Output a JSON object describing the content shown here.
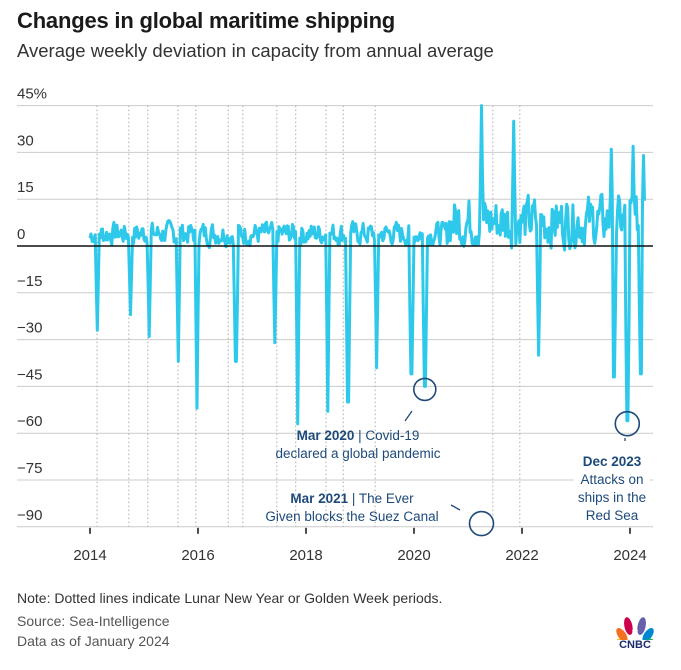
{
  "header": {
    "title": "Changes in global maritime shipping",
    "subtitle": "Average weekly deviation in capacity from annual average"
  },
  "colors": {
    "line": "#2ec9ea",
    "annotation": "#1e4a7a",
    "zero_line": "#111111",
    "grid": "#cccccc",
    "dotted": "#aaaaaa"
  },
  "chart_data": {
    "type": "line",
    "title": "Changes in global maritime shipping",
    "subtitle": "Average weekly deviation in capacity from annual average",
    "xlabel": "",
    "ylabel": "",
    "ylim": [
      -95,
      47
    ],
    "xlim": [
      2013.6,
      2024.5
    ],
    "y_ticks": [
      45,
      30,
      15,
      0,
      -15,
      -30,
      -45,
      -60,
      -75,
      -90
    ],
    "y_tick_labels": [
      "45%",
      "30",
      "15",
      "0",
      "−15",
      "−30",
      "−45",
      "−60",
      "−75",
      "−90"
    ],
    "x_ticks": [
      2014,
      2016,
      2018,
      2020,
      2022,
      2024
    ],
    "x_tick_labels": [
      "2014",
      "2016",
      "2018",
      "2020",
      "2022",
      "2024"
    ],
    "grid": "horizontal",
    "zero_line": true,
    "dotted_lines_years": [
      2014.13,
      2014.72,
      2015.07,
      2015.63,
      2015.96,
      2016.56,
      2016.83,
      2017.46,
      2017.81,
      2018.37,
      2018.69,
      2019.28,
      2021.46,
      2021.96
    ],
    "dotted_lines_meaning": "Lunar New Year or Golden Week periods",
    "dips": [
      {
        "x": 2014.13,
        "y": -27
      },
      {
        "x": 2014.75,
        "y": -22
      },
      {
        "x": 2015.1,
        "y": -29
      },
      {
        "x": 2015.63,
        "y": -37
      },
      {
        "x": 2015.98,
        "y": -52
      },
      {
        "x": 2016.7,
        "y": -37
      },
      {
        "x": 2017.42,
        "y": -31
      },
      {
        "x": 2017.85,
        "y": -57
      },
      {
        "x": 2018.4,
        "y": -53
      },
      {
        "x": 2018.78,
        "y": -50
      },
      {
        "x": 2019.3,
        "y": -39
      },
      {
        "x": 2019.95,
        "y": -41
      },
      {
        "x": 2020.2,
        "y": -45
      },
      {
        "x": 2021.25,
        "y": -88
      },
      {
        "x": 2022.3,
        "y": -35
      },
      {
        "x": 2023.7,
        "y": -42
      },
      {
        "x": 2023.95,
        "y": -56
      },
      {
        "x": 2024.2,
        "y": -41
      }
    ],
    "peaks": [
      {
        "x": 2021.25,
        "y": 45
      },
      {
        "x": 2021.85,
        "y": 40
      },
      {
        "x": 2023.65,
        "y": 31
      },
      {
        "x": 2024.05,
        "y": 32
      },
      {
        "x": 2024.25,
        "y": 29
      }
    ],
    "annotations": [
      {
        "date": "Mar 2020",
        "text": "Covid-19 declared a global pandemic",
        "x": 2020.2,
        "y": -45
      },
      {
        "date": "Mar 2021",
        "text": "The Ever Given blocks the Suez Canal",
        "x": 2021.25,
        "y": -88
      },
      {
        "date": "Dec 2023",
        "text": "Attacks on ships in the Red Sea",
        "x": 2023.95,
        "y": -56
      }
    ]
  },
  "annotations": {
    "covid": {
      "bold": "Mar 2020",
      "rest1": " | Covid-19",
      "line2": "declared a global pandemic"
    },
    "suez": {
      "bold": "Mar 2021",
      "rest1": " | The Ever",
      "line2": "Given blocks the Suez Canal"
    },
    "redsea": {
      "bold": "Dec 2023",
      "line2": "Attacks on",
      "line3": "ships in the",
      "line4": "Red Sea"
    }
  },
  "footer": {
    "note": "Note: Dotted lines indicate Lunar New Year or Golden Week periods.",
    "source": "Source: Sea-Intelligence",
    "as_of": "Data as of January 2024",
    "logo_text": "CNBC"
  }
}
